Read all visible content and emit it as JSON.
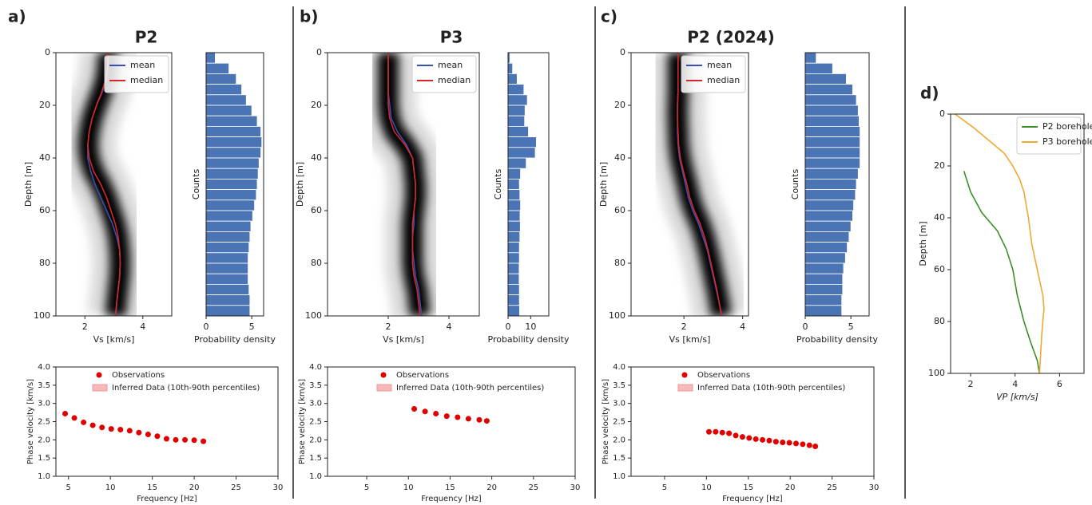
{
  "chart_data": [
    {
      "type": "profile",
      "panel_label": "a)",
      "title": "P2",
      "xlabel": "Vs [km/s]",
      "ylabel": "Depth [m]",
      "xlim": [
        1,
        5
      ],
      "ylim": [
        100,
        0
      ],
      "xticks": [
        2,
        4
      ],
      "yticks": [
        0,
        20,
        40,
        60,
        80,
        100
      ],
      "legend": "upper right",
      "density_background": true,
      "depth": [
        0,
        5,
        10,
        15,
        20,
        25,
        30,
        35,
        40,
        45,
        50,
        55,
        60,
        65,
        70,
        75,
        80,
        85,
        90,
        95,
        100
      ],
      "series": [
        {
          "name": "mean",
          "color": "#3a4fb0",
          "values": [
            2.8,
            2.8,
            2.75,
            2.6,
            2.4,
            2.25,
            2.15,
            2.1,
            2.1,
            2.2,
            2.35,
            2.55,
            2.75,
            2.95,
            3.1,
            3.2,
            3.22,
            3.2,
            3.15,
            3.1,
            3.08
          ]
        },
        {
          "name": "median",
          "color": "#d62728",
          "values": [
            2.8,
            2.78,
            2.72,
            2.58,
            2.4,
            2.25,
            2.15,
            2.1,
            2.15,
            2.3,
            2.55,
            2.75,
            2.9,
            3.05,
            3.15,
            3.2,
            3.22,
            3.2,
            3.15,
            3.1,
            3.05
          ]
        }
      ]
    },
    {
      "type": "histogram",
      "xlabel": "Probability density",
      "ylabel": "Counts",
      "xlim": [
        0,
        6.3
      ],
      "ylim": [
        100,
        0
      ],
      "xticks": [
        0,
        5
      ],
      "color": "#4a74b4",
      "bins": [
        0,
        4,
        8,
        12,
        16,
        20,
        24,
        28,
        32,
        36,
        40,
        44,
        48,
        52,
        56,
        60,
        64,
        68,
        72,
        76,
        80,
        84,
        88,
        92,
        96,
        100
      ],
      "values": [
        1,
        2.5,
        3.3,
        3.9,
        4.4,
        5,
        5.6,
        6,
        6.1,
        6,
        5.8,
        5.7,
        5.6,
        5.5,
        5.3,
        5.1,
        4.9,
        4.8,
        4.7,
        4.6,
        4.6,
        4.6,
        4.7,
        4.8,
        4.8
      ]
    },
    {
      "type": "scatter",
      "xlabel": "Frequency [Hz]",
      "ylabel": "Phase velocity [km/s]",
      "xlim": [
        3.5,
        30
      ],
      "ylim": [
        1,
        4
      ],
      "xticks": [
        5,
        10,
        15,
        20,
        25,
        30
      ],
      "yticks": [
        {
          "value": 1,
          "label": "1.0"
        },
        1.5,
        {
          "value": 2,
          "label": "2.0"
        },
        2.5,
        {
          "value": 3,
          "label": "3.0"
        },
        3.5,
        {
          "value": 4,
          "label": "4.0"
        }
      ],
      "legend": "upper center",
      "series": [
        {
          "name": "Observations",
          "color": "#e00000",
          "x": [
            4.6,
            5.7,
            6.8,
            7.9,
            9.0,
            10.1,
            11.2,
            12.3,
            13.4,
            14.5,
            15.6,
            16.7,
            17.8,
            18.9,
            20.0,
            21.1
          ],
          "values": [
            2.72,
            2.6,
            2.48,
            2.4,
            2.34,
            2.3,
            2.28,
            2.25,
            2.2,
            2.15,
            2.1,
            2.03,
            2.0,
            2.0,
            1.99,
            1.96
          ]
        },
        {
          "name": "Inferred Data (10th-90th percentiles)",
          "color": "#f6b8b8"
        }
      ]
    },
    {
      "type": "profile",
      "panel_label": "b)",
      "title": "P3",
      "xlabel": "Vs [km/s]",
      "ylabel": "Depth [m]",
      "xlim": [
        0,
        5
      ],
      "ylim": [
        100,
        0
      ],
      "xticks": [
        2,
        4
      ],
      "yticks": [
        0,
        20,
        40,
        60,
        80,
        100
      ],
      "legend": "upper right",
      "density_background": true,
      "depth": [
        0,
        5,
        10,
        15,
        20,
        25,
        30,
        35,
        40,
        45,
        50,
        55,
        60,
        65,
        70,
        75,
        80,
        85,
        90,
        95,
        100
      ],
      "series": [
        {
          "name": "mean",
          "color": "#3a4fb0",
          "values": [
            2.0,
            2.0,
            2.0,
            2.0,
            2.05,
            2.1,
            2.3,
            2.6,
            2.8,
            2.85,
            2.9,
            2.9,
            2.85,
            2.85,
            2.8,
            2.8,
            2.85,
            2.9,
            3.0,
            3.05,
            3.1
          ]
        },
        {
          "name": "median",
          "color": "#d62728",
          "values": [
            2.0,
            2.0,
            2.0,
            2.0,
            2.0,
            2.05,
            2.2,
            2.55,
            2.8,
            2.85,
            2.9,
            2.9,
            2.85,
            2.8,
            2.8,
            2.8,
            2.8,
            2.85,
            2.95,
            3.0,
            3.05
          ]
        }
      ]
    },
    {
      "type": "histogram",
      "xlabel": "Probability density",
      "ylabel": "Counts",
      "xlim": [
        0,
        18
      ],
      "ylim": [
        100,
        0
      ],
      "xticks": [
        0,
        10
      ],
      "color": "#4a74b4",
      "bins": [
        0,
        4,
        8,
        12,
        16,
        20,
        24,
        28,
        32,
        36,
        40,
        44,
        48,
        52,
        56,
        60,
        64,
        68,
        72,
        76,
        80,
        84,
        88,
        92,
        96,
        100
      ],
      "values": [
        0.8,
        2,
        4,
        7,
        8.5,
        7.5,
        7.3,
        9,
        12.5,
        12,
        8,
        5.5,
        5,
        5.2,
        5.5,
        5.3,
        5.4,
        5.2,
        5.0,
        5.0,
        4.9,
        4.9,
        5.0,
        5.0,
        5.1
      ]
    },
    {
      "type": "scatter",
      "xlabel": "Frequency [Hz]",
      "ylabel": "Phase velocity [km/s]",
      "xlim": [
        0.3,
        30
      ],
      "ylim": [
        1,
        4
      ],
      "xticks": [
        5,
        10,
        15,
        20,
        25,
        30
      ],
      "yticks": [
        {
          "value": 1,
          "label": "1.0"
        },
        1.5,
        {
          "value": 2,
          "label": "2.0"
        },
        2.5,
        {
          "value": 3,
          "label": "3.0"
        },
        3.5,
        {
          "value": 4,
          "label": "4.0"
        }
      ],
      "legend": "upper center",
      "series": [
        {
          "name": "Observations",
          "color": "#e00000",
          "x": [
            10.7,
            12.0,
            13.3,
            14.6,
            15.9,
            17.2,
            18.5,
            19.4
          ],
          "values": [
            2.85,
            2.78,
            2.72,
            2.65,
            2.62,
            2.58,
            2.55,
            2.52
          ]
        },
        {
          "name": "Inferred Data (10th-90th percentiles)",
          "color": "#f6b8b8"
        }
      ]
    },
    {
      "type": "profile",
      "panel_label": "c)",
      "title": "P2 (2024)",
      "xlabel": "Vs [km/s]",
      "ylabel": "Depth [m]",
      "xlim": [
        0.2,
        4.2
      ],
      "ylim": [
        100,
        0
      ],
      "xticks": [
        2,
        4
      ],
      "yticks": [
        0,
        20,
        40,
        60,
        80,
        100
      ],
      "legend": "upper right",
      "density_background": true,
      "depth": [
        0,
        5,
        10,
        15,
        20,
        25,
        30,
        35,
        40,
        45,
        50,
        55,
        60,
        65,
        70,
        75,
        80,
        85,
        90,
        95,
        100
      ],
      "series": [
        {
          "name": "mean",
          "color": "#3a4fb0",
          "values": [
            1.8,
            1.8,
            1.8,
            1.8,
            1.78,
            1.78,
            1.78,
            1.8,
            1.85,
            1.95,
            2.05,
            2.15,
            2.3,
            2.5,
            2.65,
            2.8,
            2.9,
            3.0,
            3.1,
            3.2,
            3.3
          ]
        },
        {
          "name": "median",
          "color": "#d62728",
          "values": [
            1.8,
            1.8,
            1.8,
            1.8,
            1.78,
            1.78,
            1.8,
            1.82,
            1.88,
            1.98,
            2.1,
            2.2,
            2.35,
            2.55,
            2.7,
            2.82,
            2.92,
            3.02,
            3.12,
            3.2,
            3.28
          ]
        }
      ]
    },
    {
      "type": "histogram",
      "xlabel": "Probability density",
      "ylabel": "Counts",
      "xlim": [
        0,
        7
      ],
      "ylim": [
        100,
        0
      ],
      "xticks": [
        0,
        5
      ],
      "color": "#4a74b4",
      "bins": [
        0,
        4,
        8,
        12,
        16,
        20,
        24,
        28,
        32,
        36,
        40,
        44,
        48,
        52,
        56,
        60,
        64,
        68,
        72,
        76,
        80,
        84,
        88,
        92,
        96,
        100
      ],
      "values": [
        1.2,
        3,
        4.5,
        5.2,
        5.6,
        5.8,
        5.9,
        6,
        6,
        6,
        6,
        5.8,
        5.6,
        5.5,
        5.3,
        5.2,
        5,
        4.8,
        4.6,
        4.4,
        4.2,
        4.1,
        4.1,
        4.0,
        4.0
      ]
    },
    {
      "type": "scatter",
      "xlabel": "Frequency [Hz]",
      "ylabel": "Phase velocity [km/s]",
      "xlim": [
        1,
        30
      ],
      "ylim": [
        1,
        4
      ],
      "xticks": [
        5,
        10,
        15,
        20,
        25,
        30
      ],
      "yticks": [
        {
          "value": 1,
          "label": "1.0"
        },
        1.5,
        {
          "value": 2,
          "label": "2.0"
        },
        2.5,
        {
          "value": 3,
          "label": "3.0"
        },
        3.5,
        {
          "value": 4,
          "label": "4.0"
        }
      ],
      "legend": "upper center",
      "series": [
        {
          "name": "Observations",
          "color": "#e00000",
          "x": [
            10.3,
            11.1,
            11.9,
            12.7,
            13.5,
            14.3,
            15.1,
            15.9,
            16.7,
            17.5,
            18.3,
            19.1,
            19.9,
            20.7,
            21.5,
            22.3,
            23.0
          ],
          "values": [
            2.22,
            2.22,
            2.2,
            2.18,
            2.12,
            2.08,
            2.05,
            2.02,
            2.0,
            1.98,
            1.95,
            1.93,
            1.92,
            1.9,
            1.88,
            1.85,
            1.82
          ]
        },
        {
          "name": "Inferred Data (10th-90th percentiles)",
          "color": "#f6b8b8"
        }
      ]
    },
    {
      "type": "profile",
      "panel_label": "d)",
      "xlabel": "VP [km/s]",
      "ylabel": "Depth [m]",
      "xlim": [
        1.1,
        7.1
      ],
      "ylim": [
        100,
        0
      ],
      "xticks": [
        2,
        4,
        6
      ],
      "yticks": [
        0,
        20,
        40,
        60,
        80,
        100
      ],
      "legend": "upper right",
      "series": [
        {
          "name": "P2 borehole",
          "color": "#3d8f2a",
          "depth": [
            22,
            30,
            38,
            45,
            52,
            60,
            70,
            80,
            88,
            95,
            100
          ],
          "values": [
            1.7,
            2.0,
            2.5,
            3.2,
            3.6,
            3.9,
            4.1,
            4.4,
            4.7,
            5.0,
            5.1
          ]
        },
        {
          "name": "P3 borehole",
          "color": "#f0a830",
          "depth": [
            0,
            5,
            10,
            15,
            20,
            25,
            30,
            40,
            50,
            60,
            70,
            75,
            85,
            100
          ],
          "values": [
            1.3,
            2.1,
            2.8,
            3.5,
            3.9,
            4.2,
            4.4,
            4.6,
            4.75,
            5.0,
            5.25,
            5.3,
            5.2,
            5.1
          ]
        }
      ]
    }
  ]
}
